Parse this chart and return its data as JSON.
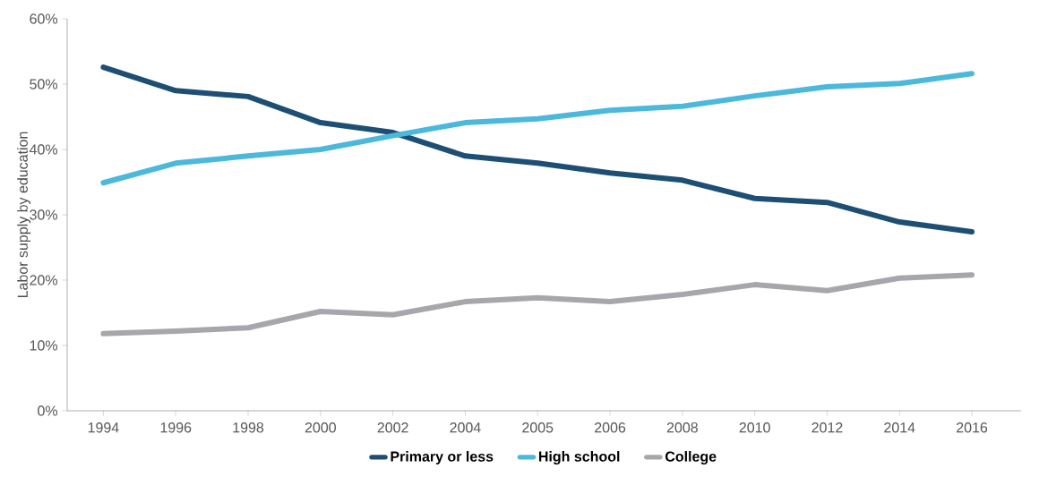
{
  "chart_data": {
    "type": "line",
    "ylabel": "Labor supply by education",
    "categories": [
      "1994",
      "1996",
      "1998",
      "2000",
      "2002",
      "2004",
      "2005",
      "2006",
      "2008",
      "2010",
      "2012",
      "2014",
      "2016"
    ],
    "series": [
      {
        "name": "Primary or less",
        "color": "#1d4e74",
        "values": [
          52.6,
          49.0,
          48.1,
          44.1,
          42.6,
          39.0,
          37.9,
          36.4,
          35.3,
          32.5,
          31.9,
          28.9,
          27.4
        ]
      },
      {
        "name": "High school",
        "color": "#4bb8dc",
        "values": [
          34.9,
          37.9,
          39.0,
          40.0,
          42.1,
          44.1,
          44.7,
          46.0,
          46.6,
          48.2,
          49.6,
          50.1,
          51.6
        ]
      },
      {
        "name": "College",
        "color": "#a6a6ab",
        "values": [
          11.8,
          12.2,
          12.7,
          15.2,
          14.7,
          16.7,
          17.3,
          16.7,
          17.8,
          19.3,
          18.4,
          20.3,
          20.8
        ]
      }
    ],
    "ylim": [
      0,
      60
    ],
    "yticks": [
      {
        "value": 0,
        "label": "0%"
      },
      {
        "value": 10,
        "label": "10%"
      },
      {
        "value": 20,
        "label": "20%"
      },
      {
        "value": 30,
        "label": "30%"
      },
      {
        "value": 40,
        "label": "40%"
      },
      {
        "value": 50,
        "label": "50%"
      },
      {
        "value": 60,
        "label": "60%"
      }
    ],
    "grid": false,
    "legend": "bottom",
    "marker": "none",
    "line_style": "solid"
  }
}
